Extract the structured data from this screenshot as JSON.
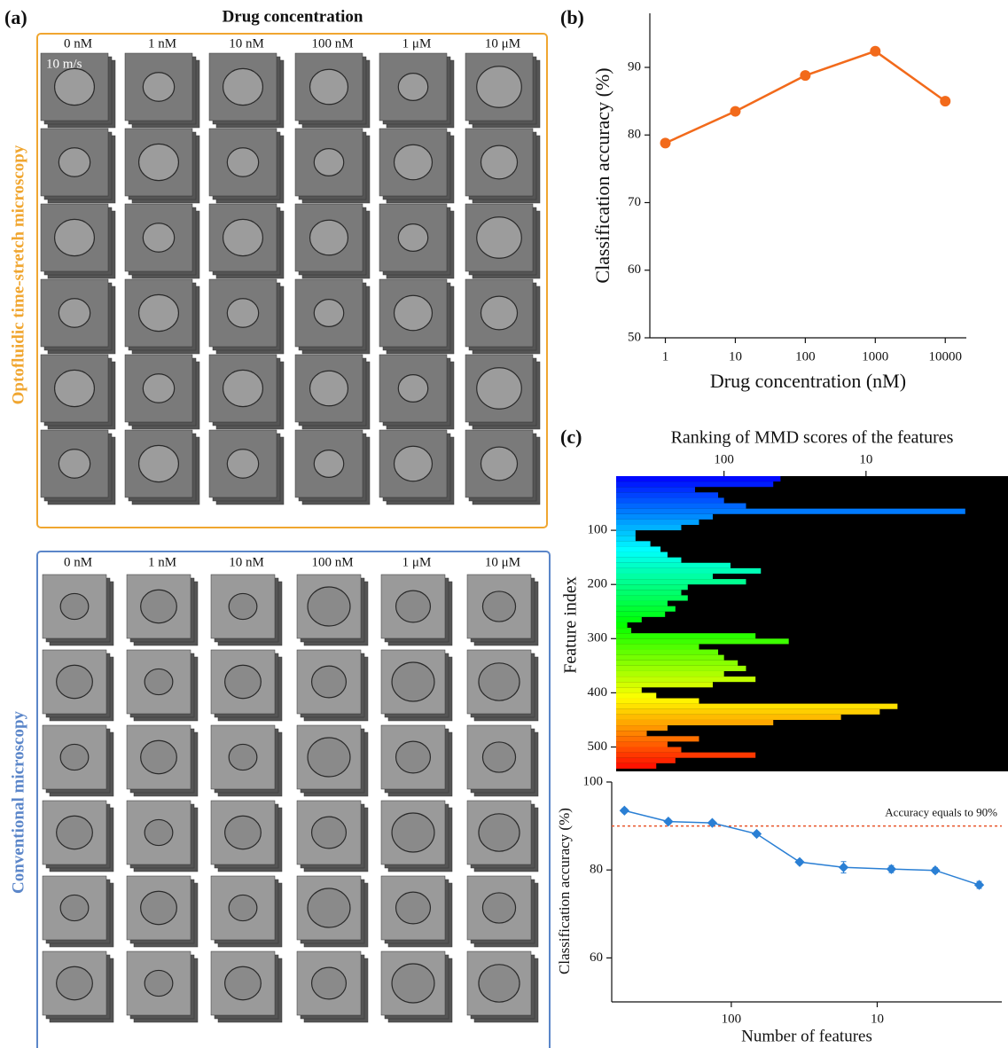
{
  "panel_a": {
    "panel_label": "(a)",
    "title": "Drug concentration",
    "columns": [
      "0 nM",
      "1 nM",
      "10 nM",
      "100 nM",
      "1 μM",
      "10 μM"
    ],
    "top_label": "Optofluidic time-stretch microscopy",
    "top_color": "#f0a630",
    "bottom_label": "Conventional microscopy",
    "bottom_color": "#5b86c9",
    "scale_annotation": "10 m/s"
  },
  "chart_data": [
    {
      "type": "line",
      "panel_label": "(b)",
      "x": [
        1,
        10,
        100,
        1000,
        10000
      ],
      "values": [
        78.8,
        83.5,
        88.8,
        92.4,
        85.0
      ],
      "color": "#f26a1b",
      "xlog": true,
      "xlim": [
        0.6,
        20000
      ],
      "xticks": [
        1,
        10,
        100,
        1000,
        10000
      ],
      "ylim": [
        50,
        98
      ],
      "yticks": [
        50,
        60,
        70,
        80,
        90
      ],
      "xlabel": "Drug concentration (nM)",
      "ylabel": "Classification accuracy (%)"
    },
    {
      "type": "barh",
      "panel_label": "(c)",
      "title": "Ranking of MMD scores of the features",
      "ylabel": "Feature index",
      "y": [
        5,
        15,
        25,
        35,
        45,
        55,
        65,
        75,
        85,
        95,
        105,
        115,
        125,
        135,
        145,
        155,
        165,
        175,
        185,
        195,
        205,
        215,
        225,
        235,
        245,
        255,
        265,
        275,
        285,
        295,
        305,
        315,
        325,
        335,
        345,
        355,
        365,
        375,
        385,
        395,
        405,
        415,
        425,
        435,
        445,
        455,
        465,
        475,
        485,
        495,
        505,
        515,
        525,
        535
      ],
      "values": [
        40,
        45,
        160,
        110,
        100,
        70,
        2,
        120,
        150,
        200,
        420,
        420,
        330,
        280,
        250,
        200,
        90,
        55,
        120,
        70,
        180,
        200,
        180,
        250,
        220,
        260,
        380,
        480,
        450,
        60,
        35,
        150,
        110,
        100,
        80,
        70,
        100,
        60,
        120,
        380,
        300,
        150,
        6,
        8,
        15,
        45,
        250,
        350,
        150,
        250,
        200,
        60,
        220,
        300
      ],
      "colormap": "rainbow",
      "background": "#000000",
      "xlog": true,
      "xlim": [
        575,
        1
      ],
      "xticks": [
        100,
        10
      ],
      "ylim": [
        0,
        545
      ],
      "yticks": [
        100,
        200,
        300,
        400,
        500
      ]
    },
    {
      "type": "errorline",
      "x": [
        540,
        270,
        135,
        67,
        34,
        17,
        8,
        4,
        2
      ],
      "values": [
        93.5,
        91.0,
        90.7,
        88.2,
        81.8,
        80.6,
        80.2,
        79.9,
        76.6
      ],
      "errors": [
        0.5,
        0.5,
        0.4,
        0.5,
        0.5,
        1.3,
        0.8,
        0.6,
        0.8
      ],
      "color": "#2a7fd4",
      "xlog": true,
      "xlim": [
        660,
        1.4
      ],
      "xticks": [
        100,
        10
      ],
      "ylim": [
        50,
        100
      ],
      "yticks": [
        60,
        80,
        100
      ],
      "reference": {
        "value": 90,
        "label": "Accuracy equals to 90%",
        "color": "#e8542a"
      },
      "xlabel": "Number of features",
      "ylabel": "Classification accuracy (%)"
    }
  ]
}
